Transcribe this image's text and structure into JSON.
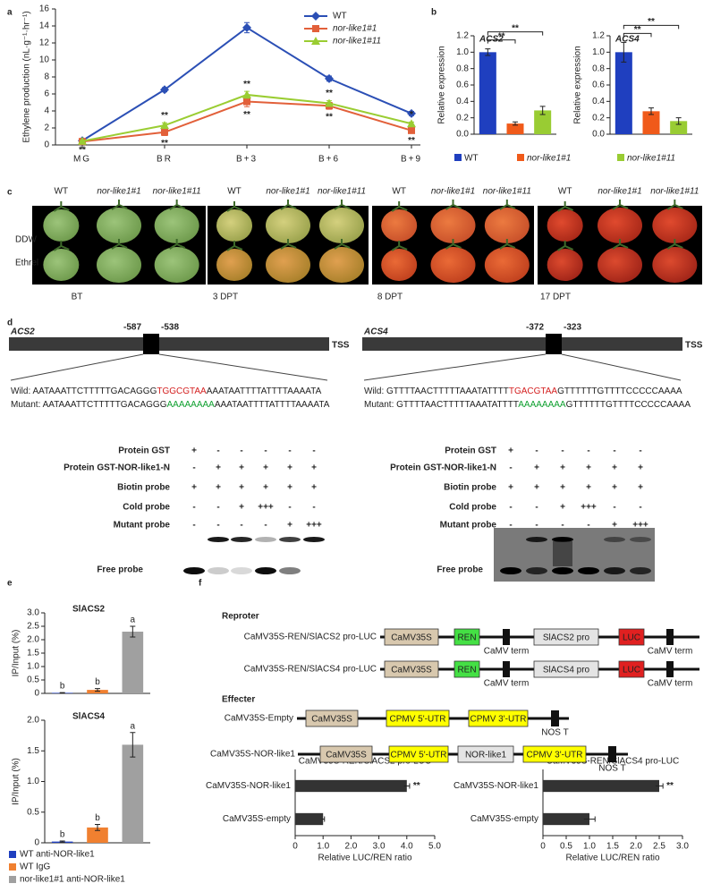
{
  "panel_labels": [
    "a",
    "b",
    "c",
    "d",
    "e",
    "f"
  ],
  "chart_data": [
    {
      "type": "line",
      "ylabel": "Ethylene production (nL·g⁻¹·hr⁻¹)",
      "categories": [
        "MG",
        "BR",
        "B+3",
        "B+6",
        "B+9"
      ],
      "ylim": [
        0,
        16
      ],
      "yticks": [
        0,
        2,
        4,
        6,
        8,
        10,
        12,
        14,
        16
      ],
      "series": [
        {
          "name": "WT",
          "color": "#2b4fb5",
          "marker": "diamond",
          "values": [
            0.5,
            6.5,
            13.8,
            7.8,
            3.7
          ],
          "errors": [
            0.1,
            0.25,
            0.6,
            0.3,
            0.25
          ]
        },
        {
          "name": "nor-like1#1",
          "color": "#e2603a",
          "marker": "square",
          "values": [
            0.4,
            1.5,
            5.1,
            4.6,
            1.7
          ],
          "errors": [
            0.05,
            0.4,
            0.6,
            0.4,
            0.25
          ],
          "significance": [
            "**",
            "**",
            "**",
            "**",
            "**"
          ]
        },
        {
          "name": "nor-like1#11",
          "color": "#9acd32",
          "marker": "triangle",
          "values": [
            0.45,
            2.3,
            5.9,
            4.9,
            2.5
          ],
          "errors": [
            0.05,
            0.3,
            0.4,
            0.3,
            0.2
          ],
          "significance": [
            null,
            "**",
            "**",
            "**",
            "*"
          ]
        }
      ]
    },
    {
      "type": "bar",
      "title": "ACS2",
      "ylabel": "Relative expression",
      "values": [
        1.0,
        0.13,
        0.29
      ],
      "errors": [
        0.04,
        0.02,
        0.05
      ],
      "ylim": [
        0,
        1.2
      ],
      "yticks": [
        {
          "value": 0,
          "label": "0.0"
        },
        0.2,
        0.4,
        0.6,
        0.8,
        {
          "value": 1,
          "label": "1.0"
        },
        1.2
      ],
      "significance": [
        "**",
        "**"
      ],
      "legend": [
        {
          "name": "WT",
          "color": "#1f3fbf"
        },
        {
          "name": "nor-like1#1",
          "color": "#f05a1a"
        },
        {
          "name": "nor-like1#11",
          "color": "#99cc33"
        }
      ]
    },
    {
      "type": "bar",
      "title": "ACS4",
      "ylabel": "Relative expression",
      "values": [
        1.0,
        0.28,
        0.16
      ],
      "errors": [
        0.12,
        0.04,
        0.04
      ],
      "ylim": [
        0,
        1.2
      ],
      "yticks": [
        {
          "value": 0,
          "label": "0.0"
        },
        0.2,
        0.4,
        0.6,
        0.8,
        {
          "value": 1,
          "label": "1.0"
        },
        1.2
      ],
      "significance": [
        "**",
        "**"
      ]
    },
    {
      "type": "bar",
      "title": "SlACS2",
      "ylabel": "IP/Input (%)",
      "values": [
        0.02,
        0.13,
        2.3
      ],
      "errors": [
        0.01,
        0.05,
        0.2
      ],
      "ylim": [
        0,
        3
      ],
      "yticks": [
        0,
        0.5,
        {
          "value": 1,
          "label": "1.0"
        },
        1.5,
        {
          "value": 2,
          "label": "2.0"
        },
        2.5,
        {
          "value": 3,
          "label": "3.0"
        }
      ],
      "annotations": [
        "b",
        "b",
        "a"
      ],
      "legend": [
        {
          "name": "WT anti-NOR-like1",
          "color": "#1f3fbf"
        },
        {
          "name": "WT IgG",
          "color": "#f08030"
        },
        {
          "name": "nor-like1#1 anti-NOR-like1",
          "color": "#a0a0a0"
        }
      ]
    },
    {
      "type": "bar",
      "title": "SlACS4",
      "ylabel": "IP/Input (%)",
      "values": [
        0.02,
        0.25,
        1.6
      ],
      "errors": [
        0.01,
        0.05,
        0.2
      ],
      "ylim": [
        0,
        2
      ],
      "yticks": [
        0,
        0.5,
        {
          "value": 1,
          "label": "1.0"
        },
        1.5,
        {
          "value": 2,
          "label": "2.0"
        }
      ],
      "annotations": [
        "b",
        "b",
        "a"
      ]
    },
    {
      "type": "hbar",
      "title": "CaMV35S-REN/SlACS2 pro-LUC",
      "xlabel": "Relative LUC/REN ratio",
      "color": "#333333",
      "categories": [
        "CaMV35S-NOR-like1",
        "CaMV35S-empty"
      ],
      "values": [
        4.0,
        1.0
      ],
      "errors": [
        0.1,
        0.05
      ],
      "significance": [
        "**",
        null
      ],
      "xlim": [
        0,
        5
      ],
      "xticks": [
        0,
        {
          "value": 1,
          "label": "1.0"
        },
        {
          "value": 2,
          "label": "2.0"
        },
        {
          "value": 3,
          "label": "3.0"
        },
        {
          "value": 4,
          "label": "4.0"
        },
        {
          "value": 5,
          "label": "5.0"
        }
      ]
    },
    {
      "type": "hbar",
      "title": "CaMV35S-REN/SlACS4 pro-LUC",
      "xlabel": "Relative LUC/REN ratio",
      "color": "#333333",
      "categories": [
        "CaMV35S-NOR-like1",
        "CaMV35S-empty"
      ],
      "values": [
        2.5,
        1.0
      ],
      "errors": [
        0.08,
        0.12
      ],
      "significance": [
        "**",
        null
      ],
      "xlim": [
        0,
        3
      ],
      "xticks": [
        0,
        0.5,
        {
          "value": 1,
          "label": "1.0"
        },
        1.5,
        {
          "value": 2,
          "label": "2.0"
        },
        2.5,
        {
          "value": 3,
          "label": "3.0"
        }
      ]
    }
  ],
  "photos": {
    "rows": [
      "DDW",
      "Ethrel"
    ],
    "groups": [
      {
        "stage": "BT",
        "columns": [
          "WT",
          "nor-like1#1",
          "nor-like1#11"
        ]
      },
      {
        "stage": "3 DPT",
        "columns": [
          "WT",
          "nor-like1#1",
          "nor-like1#11"
        ]
      },
      {
        "stage": "8 DPT",
        "columns": [
          "WT",
          "nor-like1#1",
          "nor-like1#11"
        ]
      },
      {
        "stage": "17 DPT",
        "columns": [
          "WT",
          "nor-like1#1",
          "nor-like1#11"
        ]
      }
    ]
  },
  "emsa": [
    {
      "gene": "ACS2",
      "positions": [
        "-587",
        "-538"
      ],
      "tss": "TSS",
      "wild_label": "Wild:",
      "wild": [
        "AATAAATTCTTTTTGACAGGG",
        "TGGCGTAA",
        "AAATAATTTTATTTTAAAATA"
      ],
      "mutant_label": "Mutant:",
      "mutant": [
        "AATAAATTCTTTTTGACAGGG",
        "AAAAAAAA",
        "AAATAATTTTATTTTAAAATA"
      ],
      "rows": [
        {
          "label": "Protein GST",
          "marks": [
            "+",
            "-",
            "-",
            "-",
            "-",
            "-"
          ]
        },
        {
          "label": "Protein GST-NOR-like1-N",
          "marks": [
            "-",
            "+",
            "+",
            "+",
            "+",
            "+"
          ]
        },
        {
          "label": "Biotin probe",
          "marks": [
            "+",
            "+",
            "+",
            "+",
            "+",
            "+"
          ]
        },
        {
          "label": "Cold probe",
          "marks": [
            "-",
            "-",
            "+",
            "+++",
            "-",
            "-"
          ]
        },
        {
          "label": "Mutant probe",
          "marks": [
            "-",
            "-",
            "-",
            "-",
            "+",
            "+++"
          ]
        }
      ],
      "free_probe": "Free probe"
    },
    {
      "gene": "ACS4",
      "positions": [
        "-372",
        "-323"
      ],
      "tss": "TSS",
      "wild_label": "Wild:",
      "wild": [
        "GTTTTAACTTTTTAAATATTTT",
        "TGACGTAA",
        "GTTTTTTGTTTTCCCCCAAAA"
      ],
      "mutant_label": "Mutant:",
      "mutant": [
        "GTTTTAACTTTTTAAATATTTT",
        "AAAAAAAA",
        "GTTTTTTGTTTTCCCCCAAAA"
      ],
      "rows": [
        {
          "label": "Protein GST",
          "marks": [
            "+",
            "-",
            "-",
            "-",
            "-",
            "-"
          ]
        },
        {
          "label": "Protein GST-NOR-like1-N",
          "marks": [
            "-",
            "+",
            "+",
            "+",
            "+",
            "+"
          ]
        },
        {
          "label": "Biotin probe",
          "marks": [
            "+",
            "+",
            "+",
            "+",
            "+",
            "+"
          ]
        },
        {
          "label": "Cold probe",
          "marks": [
            "-",
            "-",
            "+",
            "+++",
            "-",
            "-"
          ]
        },
        {
          "label": "Mutant probe",
          "marks": [
            "-",
            "-",
            "-",
            "-",
            "+",
            "+++"
          ]
        }
      ],
      "free_probe": "Free probe"
    }
  ],
  "constructs": {
    "reporter_title": "Reproter",
    "reporters": [
      {
        "label": "CaMV35S-REN/SlACS2 pro-LUC",
        "elements": [
          "CaMV35S",
          "REN",
          "CaMV term",
          "SlACS2 pro",
          "LUC",
          "CaMV term"
        ]
      },
      {
        "label": "CaMV35S-REN/SlACS4 pro-LUC",
        "elements": [
          "CaMV35S",
          "REN",
          "CaMV term",
          "SlACS4 pro",
          "LUC",
          "CaMV term"
        ]
      }
    ],
    "effector_title": "Effecter",
    "effectors": [
      {
        "label": "CaMV35S-Empty",
        "elements": [
          "CaMV35S",
          "CPMV 5'-UTR",
          "CPMV 3'-UTR",
          "NOS T"
        ]
      },
      {
        "label": "CaMV35S-NOR-like1",
        "elements": [
          "CaMV35S",
          "CPMV 5'-UTR",
          "NOR-like1",
          "CPMV 3'-UTR",
          "NOS T"
        ]
      }
    ]
  }
}
